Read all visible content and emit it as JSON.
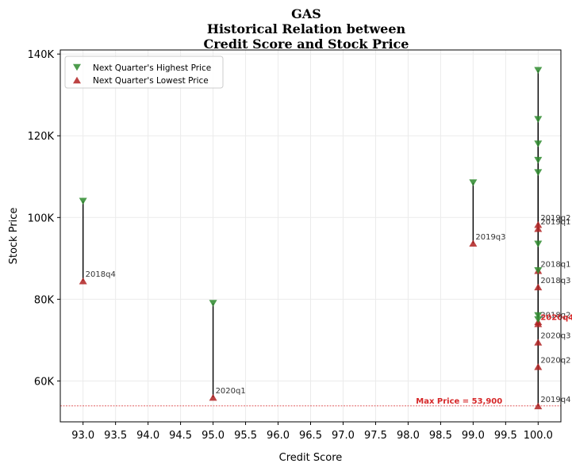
{
  "chart_data": {
    "type": "scatter",
    "title_lines": [
      "GAS",
      "Historical Relation between",
      "Credit Score and Stock Price"
    ],
    "xlabel": "Credit Score",
    "ylabel": "Stock Price",
    "xlim": [
      92.65,
      100.35
    ],
    "ylim": [
      50000,
      141000
    ],
    "xticks": [
      93.0,
      93.5,
      94.0,
      94.5,
      95.0,
      95.5,
      96.0,
      96.5,
      97.0,
      97.5,
      98.0,
      98.5,
      99.0,
      99.5,
      100.0
    ],
    "xtick_labels": [
      "93.0",
      "93.5",
      "94.0",
      "94.5",
      "95.0",
      "95.5",
      "96.0",
      "96.5",
      "97.0",
      "97.5",
      "98.0",
      "98.5",
      "99.0",
      "99.5",
      "100.0"
    ],
    "yticks": [
      60000,
      80000,
      100000,
      120000,
      140000
    ],
    "ytick_labels": [
      "60K",
      "80K",
      "100K",
      "120K",
      "140K"
    ],
    "grid": true,
    "legend_position": "top-left",
    "series": [
      {
        "name": "Next Quarter's Highest Price",
        "marker": "triangle-down",
        "color": "#2e8b2e"
      },
      {
        "name": "Next Quarter's Lowest Price",
        "marker": "triangle-up",
        "color": "#b22222"
      }
    ],
    "points": [
      {
        "label": "2018q4",
        "x": 93.0,
        "high": 104000,
        "low": 84500
      },
      {
        "label": "2020q1",
        "x": 95.0,
        "high": 79000,
        "low": 56000
      },
      {
        "label": "2019q3",
        "x": 99.0,
        "high": 108500,
        "low": 93700
      },
      {
        "label": "2019q2",
        "x": 100.0,
        "high": 136000,
        "low": 98300
      },
      {
        "label": "2019q1",
        "x": 100.0,
        "high": 124000,
        "low": 97300
      },
      {
        "label": "2018q1",
        "x": 100.0,
        "high": 118000,
        "low": 87000
      },
      {
        "label": "2018q3",
        "x": 100.0,
        "high": 114000,
        "low": 83000
      },
      {
        "label": "2018q2",
        "x": 100.0,
        "high": 111000,
        "low": 74500
      },
      {
        "label": "2020q4",
        "x": 100.0,
        "high": 93500,
        "low": 74000,
        "highlight": true
      },
      {
        "label": "2020q3",
        "x": 100.0,
        "high": 76000,
        "low": 69500
      },
      {
        "label": "2020q2",
        "x": 100.0,
        "high": 75000,
        "low": 63500
      },
      {
        "label": "2019q4",
        "x": 100.0,
        "high": 87000,
        "low": 53900
      }
    ],
    "max_price_line": {
      "value": 53900,
      "label": "Max Price = 53,900",
      "color": "#d62728"
    }
  }
}
